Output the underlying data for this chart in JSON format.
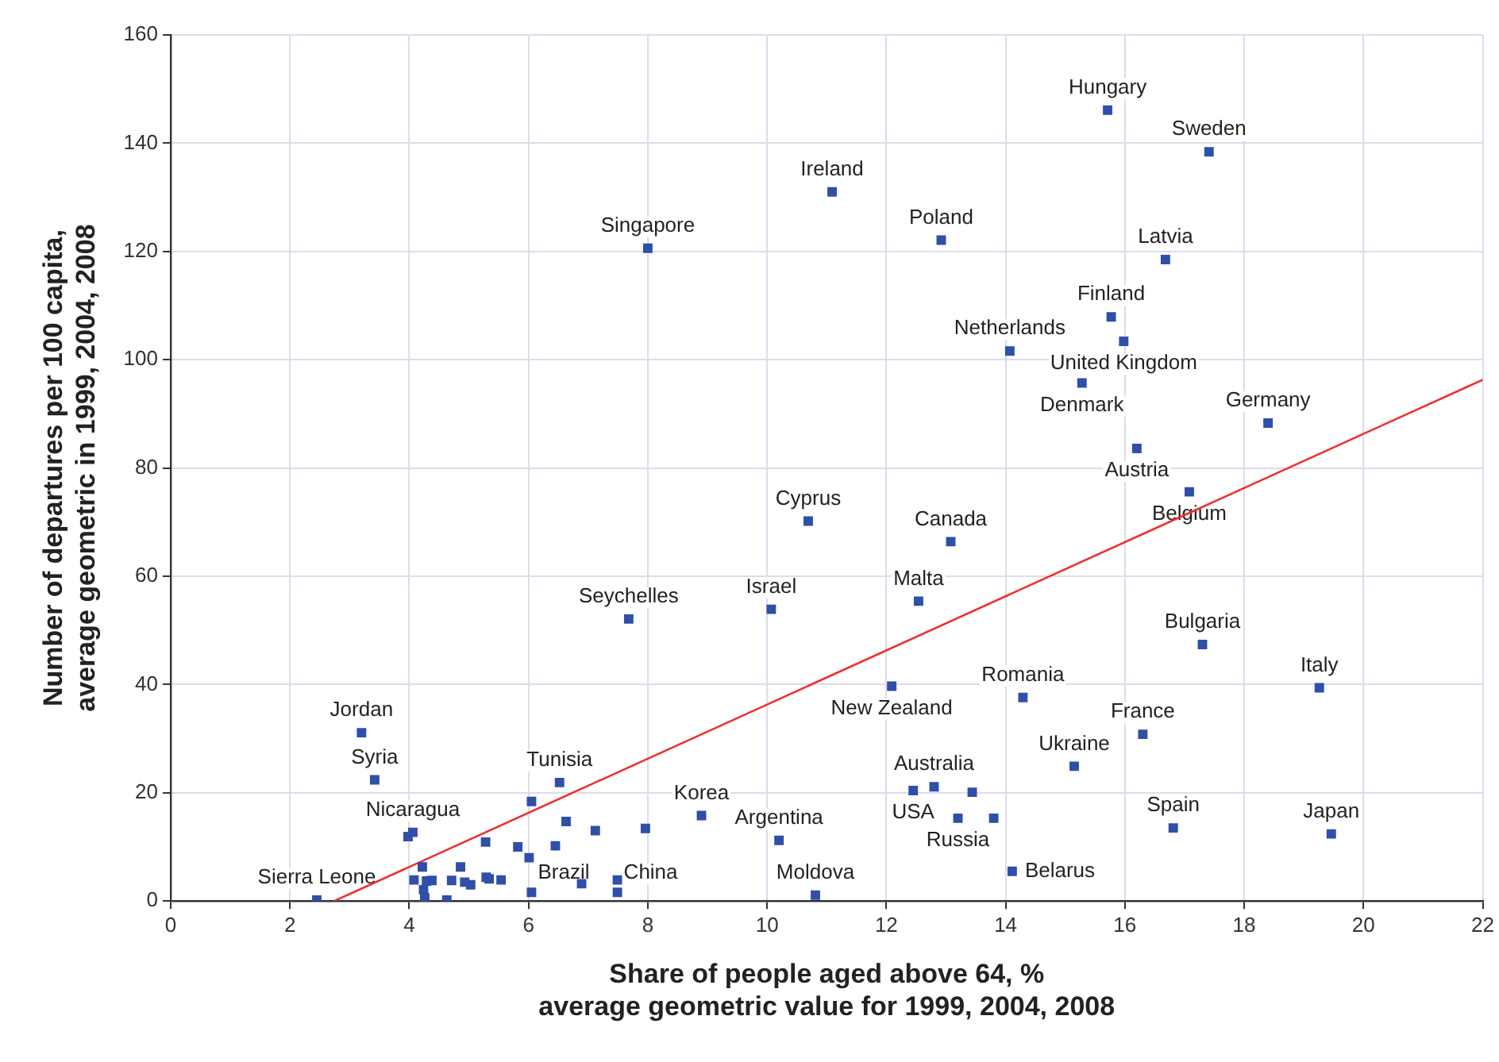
{
  "chart_data": {
    "type": "scatter",
    "xlabel": "Share of people aged above 64, %\naverage geometric value for 1999, 2004, 2008",
    "ylabel": "Number of departures per 100 capita,\naverage geometric in 1999, 2004, 2008",
    "xlim": [
      0,
      22
    ],
    "xticks": [
      0,
      2,
      4,
      6,
      8,
      10,
      12,
      14,
      16,
      18,
      20,
      22
    ],
    "ylim": [
      0,
      160
    ],
    "yticks": [
      0,
      20,
      40,
      60,
      80,
      100,
      120,
      140,
      160
    ],
    "grid": true,
    "legend": false,
    "marker": "square",
    "series": [
      {
        "color": "#2f4fa8",
        "x": [
          15.71,
          17.41,
          11.09,
          12.92,
          8.0,
          16.68,
          15.77,
          15.98,
          14.07,
          15.28,
          18.4,
          16.2,
          17.08,
          10.69,
          13.08,
          12.54,
          10.07,
          7.68,
          17.3,
          19.26,
          12.09,
          14.29,
          16.3,
          15.15,
          3.2,
          3.42,
          6.52,
          4.06,
          8.9,
          10.2,
          12.8,
          12.45,
          13.2,
          16.81,
          19.46,
          14.11,
          10.81,
          6.05,
          7.49,
          2.45,
          13.44,
          13.8,
          6.05,
          3.98,
          6.63,
          7.12,
          7.96,
          5.28,
          5.82,
          6.45,
          6.01,
          4.22,
          4.86,
          4.08,
          4.29,
          4.38,
          4.71,
          4.93,
          5.03,
          5.29,
          5.34,
          5.54,
          6.89,
          7.49,
          4.24,
          4.26,
          4.63
        ],
        "values": [
          146.1,
          138.4,
          131.0,
          122.1,
          120.6,
          118.5,
          107.9,
          103.4,
          101.6,
          95.7,
          88.3,
          83.6,
          75.6,
          70.2,
          66.4,
          55.4,
          53.9,
          52.1,
          47.4,
          39.4,
          39.7,
          37.6,
          30.8,
          24.9,
          31.1,
          22.4,
          21.9,
          12.7,
          15.8,
          11.2,
          21.1,
          20.4,
          15.3,
          13.5,
          12.4,
          5.5,
          1.1,
          1.6,
          1.6,
          0.2,
          20.1,
          15.3,
          18.4,
          11.9,
          14.7,
          13.0,
          13.4,
          10.9,
          10.0,
          10.2,
          8.0,
          6.3,
          6.3,
          3.9,
          3.7,
          3.8,
          3.8,
          3.5,
          3.0,
          4.4,
          4.1,
          3.9,
          3.2,
          3.9,
          2.1,
          0.6,
          0.2
        ]
      },
      {
        "type": "line",
        "color": "#ee3030",
        "x": [
          2.74,
          22
        ],
        "values": [
          0,
          96.3
        ],
        "marker": "none"
      }
    ],
    "annotations": [
      {
        "text": "Hungary",
        "x": 15.71,
        "y": 146.1
      },
      {
        "text": "Sweden",
        "x": 17.41,
        "y": 138.4
      },
      {
        "text": "Ireland",
        "x": 11.09,
        "y": 131.0
      },
      {
        "text": "Poland",
        "x": 12.92,
        "y": 122.1
      },
      {
        "text": "Singapore",
        "x": 8.0,
        "y": 120.6
      },
      {
        "text": "Latvia",
        "x": 16.68,
        "y": 118.5
      },
      {
        "text": "Finland",
        "x": 15.77,
        "y": 107.9
      },
      {
        "text": "United Kingdom",
        "x": 15.98,
        "y": 103.4
      },
      {
        "text": "Netherlands",
        "x": 14.07,
        "y": 101.6
      },
      {
        "text": "Denmark",
        "x": 15.28,
        "y": 95.7
      },
      {
        "text": "Germany",
        "x": 18.4,
        "y": 88.3
      },
      {
        "text": "Austria",
        "x": 16.2,
        "y": 83.6
      },
      {
        "text": "Belgium",
        "x": 17.08,
        "y": 75.6
      },
      {
        "text": "Cyprus",
        "x": 10.69,
        "y": 70.2
      },
      {
        "text": "Canada",
        "x": 13.08,
        "y": 66.4
      },
      {
        "text": "Malta",
        "x": 12.54,
        "y": 55.4
      },
      {
        "text": "Israel",
        "x": 10.07,
        "y": 53.9
      },
      {
        "text": "Seychelles",
        "x": 7.68,
        "y": 52.1
      },
      {
        "text": "Bulgaria",
        "x": 17.3,
        "y": 47.4
      },
      {
        "text": "Italy",
        "x": 19.26,
        "y": 39.4
      },
      {
        "text": "New Zealand",
        "x": 12.09,
        "y": 39.7
      },
      {
        "text": "Romania",
        "x": 14.29,
        "y": 37.6
      },
      {
        "text": "France",
        "x": 16.3,
        "y": 30.8
      },
      {
        "text": "Ukraine",
        "x": 15.15,
        "y": 24.9
      },
      {
        "text": "Jordan",
        "x": 3.2,
        "y": 31.1
      },
      {
        "text": "Syria",
        "x": 3.42,
        "y": 22.4
      },
      {
        "text": "Tunisia",
        "x": 6.52,
        "y": 21.9
      },
      {
        "text": "Nicaragua",
        "x": 4.06,
        "y": 12.7
      },
      {
        "text": "Korea",
        "x": 8.9,
        "y": 15.8
      },
      {
        "text": "Argentina",
        "x": 10.2,
        "y": 11.2
      },
      {
        "text": "Australia",
        "x": 12.8,
        "y": 21.1
      },
      {
        "text": "USA",
        "x": 12.45,
        "y": 20.4
      },
      {
        "text": "Russia",
        "x": 13.2,
        "y": 15.3
      },
      {
        "text": "Spain",
        "x": 16.81,
        "y": 13.5
      },
      {
        "text": "Japan",
        "x": 19.46,
        "y": 12.4
      },
      {
        "text": "Belarus",
        "x": 14.11,
        "y": 5.5
      },
      {
        "text": "Moldova",
        "x": 10.81,
        "y": 1.1
      },
      {
        "text": "Brazil",
        "x": 6.05,
        "y": 1.6
      },
      {
        "text": "China",
        "x": 7.49,
        "y": 1.6
      },
      {
        "text": "Sierra Leone",
        "x": 2.45,
        "y": 0.2
      }
    ]
  }
}
